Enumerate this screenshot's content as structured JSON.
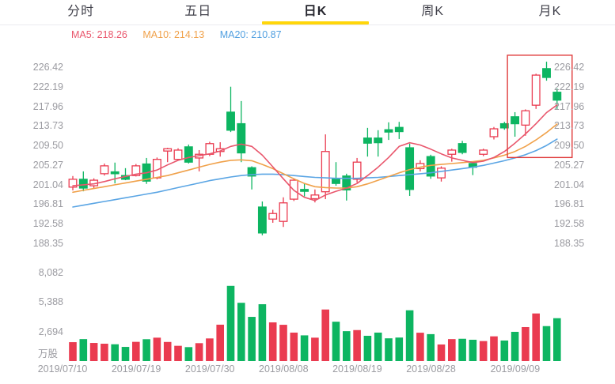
{
  "tabs": {
    "active": "日K",
    "items": [
      {
        "label": "分时"
      },
      {
        "label": "五日"
      },
      {
        "label": "日K"
      },
      {
        "label": "周K"
      },
      {
        "label": "月K"
      }
    ]
  },
  "legend": {
    "items": [
      {
        "text": "MA5: 218.26",
        "color": "#e9566c"
      },
      {
        "text": "MA10: 214.13",
        "color": "#f0a14a"
      },
      {
        "text": "MA20: 210.87",
        "color": "#509fe0"
      }
    ]
  },
  "colors": {
    "up_red": "#ea3b50",
    "down_green": "#0db561",
    "ma5": "#e9566c",
    "ma10": "#f0a14a",
    "ma20": "#5aa5e4",
    "axis_text": "#9b9ba1",
    "tab_active_underline": "#ffd60a",
    "highlight_box": "#e03c3c"
  },
  "chart_data": {
    "type": "candlestick",
    "title": "日K (daily K-line) with volume",
    "price_axis_labels": [
      "226.42",
      "222.19",
      "217.96",
      "213.73",
      "209.50",
      "205.27",
      "201.04",
      "196.81",
      "192.58",
      "188.35"
    ],
    "price_axis_sides": [
      "left",
      "right"
    ],
    "volume_axis_labels": [
      "8,082",
      "5,388",
      "2,694"
    ],
    "volume_unit": "万股",
    "x_axis_labels": [
      {
        "text": "2019/07/10",
        "at_candle": 1
      },
      {
        "text": "2019/07/19",
        "at_candle": 8
      },
      {
        "text": "2019/07/30",
        "at_candle": 15
      },
      {
        "text": "2019/08/08",
        "at_candle": 22
      },
      {
        "text": "2019/08/19",
        "at_candle": 29
      },
      {
        "text": "2019/08/28",
        "at_candle": 36
      },
      {
        "text": "2019/09/09",
        "at_candle": 44
      }
    ],
    "candles": {
      "columns": [
        "open",
        "close",
        "high",
        "low",
        "volume_wan"
      ],
      "up_means": "close>open (red hollow)",
      "rows": [
        [
          200.5,
          202.2,
          202.9,
          199.8,
          1720
        ],
        [
          202.2,
          200.3,
          203.9,
          199.6,
          2000
        ],
        [
          200.8,
          202.0,
          202.4,
          200.2,
          1650
        ],
        [
          203.4,
          205.1,
          205.6,
          203.0,
          1580
        ],
        [
          203.8,
          203.4,
          205.8,
          201.3,
          1530
        ],
        [
          203.0,
          202.2,
          204.6,
          202.0,
          1290
        ],
        [
          203.0,
          205.1,
          205.5,
          202.8,
          1750
        ],
        [
          205.5,
          201.8,
          206.8,
          201.2,
          1990
        ],
        [
          202.5,
          206.5,
          206.9,
          202.2,
          2130
        ],
        [
          208.3,
          208.8,
          209.0,
          205.9,
          1740
        ],
        [
          206.5,
          208.5,
          208.9,
          206.2,
          1390
        ],
        [
          209.2,
          205.9,
          209.7,
          205.6,
          1270
        ],
        [
          206.8,
          207.6,
          208.5,
          203.9,
          1630
        ],
        [
          207.6,
          209.9,
          210.3,
          207.2,
          2060
        ],
        [
          208.2,
          208.8,
          210.2,
          207.1,
          3310
        ],
        [
          216.7,
          212.8,
          222.2,
          212.4,
          6840
        ],
        [
          214.2,
          207.9,
          219.1,
          205.9,
          5300
        ],
        [
          204.7,
          202.9,
          205.0,
          200.0,
          4020
        ],
        [
          196.2,
          190.6,
          197.4,
          190.1,
          5170
        ],
        [
          193.6,
          194.8,
          195.6,
          192.8,
          3520
        ],
        [
          193.1,
          197.1,
          198.3,
          191.9,
          3300
        ],
        [
          197.9,
          202.0,
          202.4,
          197.5,
          2590
        ],
        [
          200.0,
          199.6,
          201.3,
          198.5,
          2340
        ],
        [
          198.0,
          198.8,
          200.0,
          197.2,
          2130
        ],
        [
          199.5,
          208.2,
          211.9,
          197.9,
          4690
        ],
        [
          202.3,
          201.3,
          205.9,
          200.8,
          3580
        ],
        [
          202.9,
          199.9,
          203.4,
          197.6,
          2720
        ],
        [
          202.2,
          205.9,
          206.8,
          201.5,
          2820
        ],
        [
          211.1,
          210.0,
          213.3,
          207.1,
          2300
        ],
        [
          211.1,
          210.1,
          212.8,
          207.1,
          2590
        ],
        [
          212.9,
          212.4,
          214.5,
          210.7,
          2070
        ],
        [
          213.4,
          212.5,
          214.6,
          210.9,
          2140
        ],
        [
          209.0,
          200.0,
          209.9,
          198.6,
          4620
        ],
        [
          204.5,
          205.6,
          206.3,
          203.9,
          2580
        ],
        [
          207.1,
          202.9,
          207.5,
          202.3,
          2450
        ],
        [
          202.5,
          204.6,
          205.0,
          201.7,
          1510
        ],
        [
          207.6,
          208.5,
          208.8,
          206.0,
          2000
        ],
        [
          209.9,
          208.0,
          210.5,
          207.6,
          2030
        ],
        [
          205.6,
          204.8,
          206.0,
          203.1,
          1940
        ],
        [
          207.6,
          208.5,
          208.8,
          207.2,
          1820
        ],
        [
          211.4,
          213.1,
          213.5,
          210.8,
          2250
        ],
        [
          214.2,
          213.3,
          214.6,
          212.9,
          1870
        ],
        [
          215.7,
          214.2,
          216.7,
          211.4,
          2660
        ],
        [
          213.9,
          217.0,
          217.3,
          211.6,
          3090
        ],
        [
          218.2,
          224.7,
          225.0,
          217.4,
          4330
        ],
        [
          226.1,
          224.2,
          227.6,
          223.5,
          3180
        ],
        [
          221.0,
          219.3,
          221.8,
          217.4,
          3900
        ]
      ]
    },
    "ma_lines": {
      "ma5": [
        200.8,
        201.0,
        201.2,
        201.7,
        202.3,
        202.8,
        203.3,
        203.6,
        204.2,
        205.3,
        206.3,
        206.9,
        207.3,
        207.7,
        208.3,
        209.3,
        209.8,
        209.3,
        207.4,
        204.9,
        202.3,
        199.8,
        198.3,
        197.6,
        198.8,
        199.6,
        200.3,
        201.3,
        203.0,
        204.8,
        206.9,
        209.3,
        210.1,
        209.6,
        208.7,
        207.7,
        206.8,
        206.3,
        205.8,
        206.1,
        206.9,
        208.2,
        210.0,
        212.0,
        214.2,
        216.6,
        218.26
      ],
      "ma10": [
        199.4,
        199.8,
        200.2,
        200.6,
        201.0,
        201.4,
        201.8,
        202.2,
        202.6,
        203.0,
        203.6,
        204.2,
        204.8,
        205.4,
        205.9,
        206.3,
        206.4,
        206.2,
        205.4,
        204.5,
        203.4,
        202.3,
        201.3,
        200.6,
        200.4,
        200.3,
        200.3,
        200.6,
        201.2,
        202.0,
        202.8,
        203.6,
        204.3,
        204.8,
        205.2,
        205.4,
        205.6,
        205.8,
        206.0,
        206.3,
        206.8,
        207.4,
        208.2,
        209.3,
        210.7,
        212.3,
        214.13
      ],
      "ma20": [
        196.2,
        196.6,
        197.0,
        197.4,
        197.8,
        198.2,
        198.6,
        199.0,
        199.4,
        199.9,
        200.4,
        200.9,
        201.4,
        201.9,
        202.3,
        202.7,
        203.0,
        203.2,
        203.3,
        203.3,
        203.2,
        203.0,
        202.8,
        202.6,
        202.5,
        202.4,
        202.4,
        202.4,
        202.5,
        202.6,
        202.8,
        203.0,
        203.2,
        203.4,
        203.6,
        203.9,
        204.2,
        204.5,
        204.8,
        205.2,
        205.7,
        206.2,
        206.8,
        207.5,
        208.4,
        209.5,
        210.87
      ]
    },
    "annotation_box": {
      "from_candle": 43,
      "to_candle": 47,
      "top_price": 229.0,
      "bottom_price": 206.9
    }
  }
}
